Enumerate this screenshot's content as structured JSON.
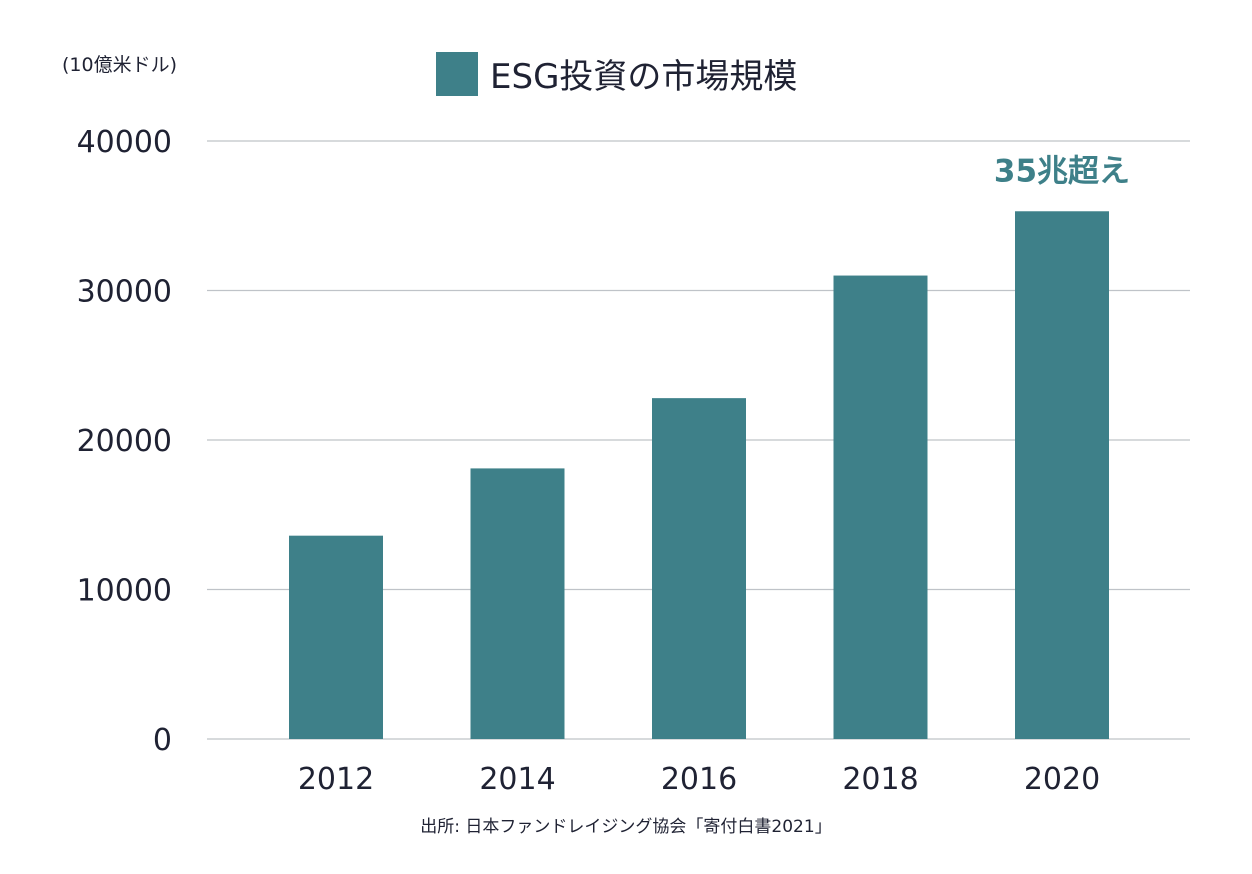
{
  "chart_data": {
    "type": "bar",
    "categories": [
      "2012",
      "2014",
      "2016",
      "2018",
      "2020"
    ],
    "series": [
      {
        "name": "ESG投資の市場規模",
        "values": [
          13600,
          18100,
          22800,
          31000,
          35300
        ]
      }
    ],
    "title": "",
    "xlabel": "",
    "ylabel": "(10億米ドル)",
    "ylim": [
      0,
      40000
    ],
    "yticks": [
      "0",
      "10000",
      "20000",
      "30000",
      "40000"
    ],
    "grid": true,
    "legend_position": "top-center",
    "annotation": {
      "text": "35兆超え",
      "category": "2020"
    },
    "source": "出所: 日本ファンドレイジング協会「寄付白書2021」",
    "colors": {
      "bar": "#3e8089",
      "annotation": "#3e8089",
      "grid": "#bfc3c8",
      "text": "#1f2233"
    }
  }
}
